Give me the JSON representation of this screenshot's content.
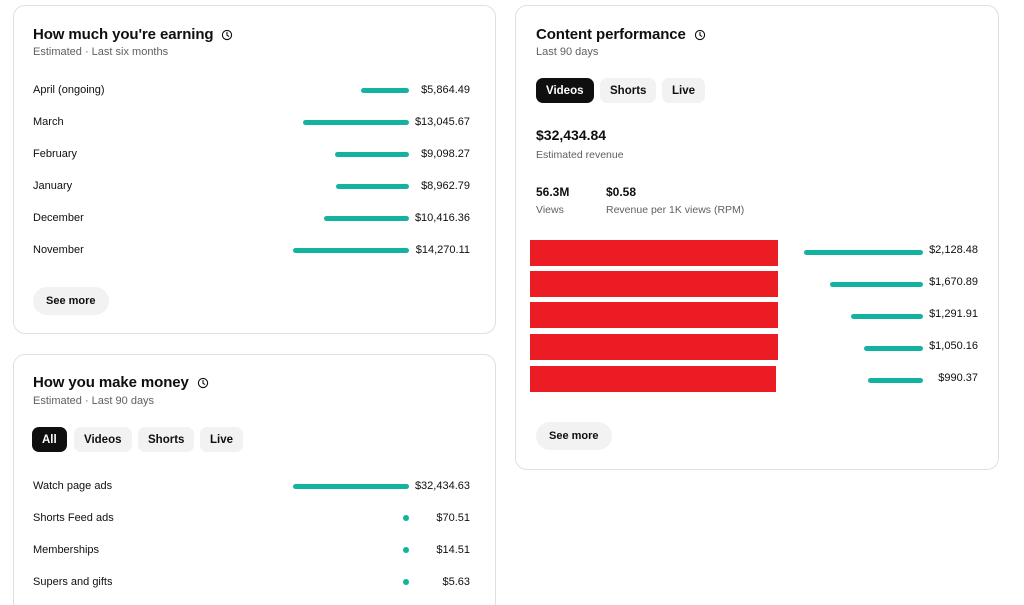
{
  "earning": {
    "title": "How much you're earning",
    "subtitle": "Estimated · Last six months",
    "rows": [
      {
        "label": "April (ongoing)",
        "value": "$5,864.49",
        "amount": 5864.49
      },
      {
        "label": "March",
        "value": "$13,045.67",
        "amount": 13045.67
      },
      {
        "label": "February",
        "value": "$9,098.27",
        "amount": 9098.27
      },
      {
        "label": "January",
        "value": "$8,962.79",
        "amount": 8962.79
      },
      {
        "label": "December",
        "value": "$10,416.36",
        "amount": 10416.36
      },
      {
        "label": "November",
        "value": "$14,270.11",
        "amount": 14270.11
      }
    ],
    "see_more": "See more"
  },
  "money": {
    "title": "How you make money",
    "subtitle": "Estimated · Last 90 days",
    "tabs": [
      {
        "label": "All",
        "active": true
      },
      {
        "label": "Videos",
        "active": false
      },
      {
        "label": "Shorts",
        "active": false
      },
      {
        "label": "Live",
        "active": false
      }
    ],
    "rows": [
      {
        "label": "Watch page ads",
        "value": "$32,434.63",
        "amount": 32434.63
      },
      {
        "label": "Shorts Feed ads",
        "value": "$70.51",
        "amount": 70.51
      },
      {
        "label": "Memberships",
        "value": "$14.51",
        "amount": 14.51
      },
      {
        "label": "Supers and gifts",
        "value": "$5.63",
        "amount": 5.63
      }
    ]
  },
  "content": {
    "title": "Content performance",
    "subtitle": "Last 90 days",
    "tabs": [
      {
        "label": "Videos",
        "active": true
      },
      {
        "label": "Shorts",
        "active": false
      },
      {
        "label": "Live",
        "active": false
      }
    ],
    "revenue_value": "$32,434.84",
    "revenue_label": "Estimated revenue",
    "views_value": "56.3M",
    "views_label": "Views",
    "rpm_value": "$0.58",
    "rpm_label": "Revenue per 1K views (RPM)",
    "videos": [
      {
        "value": "$2,128.48",
        "amount": 2128.48
      },
      {
        "value": "$1,670.89",
        "amount": 1670.89
      },
      {
        "value": "$1,291.91",
        "amount": 1291.91
      },
      {
        "value": "$1,050.16",
        "amount": 1050.16
      },
      {
        "value": "$990.37",
        "amount": 990.37
      }
    ],
    "see_more": "See more"
  },
  "colors": {
    "bar": "#14b3a0",
    "redaction": "#ec1c24"
  },
  "icons": {
    "info": "clock-info-icon"
  }
}
